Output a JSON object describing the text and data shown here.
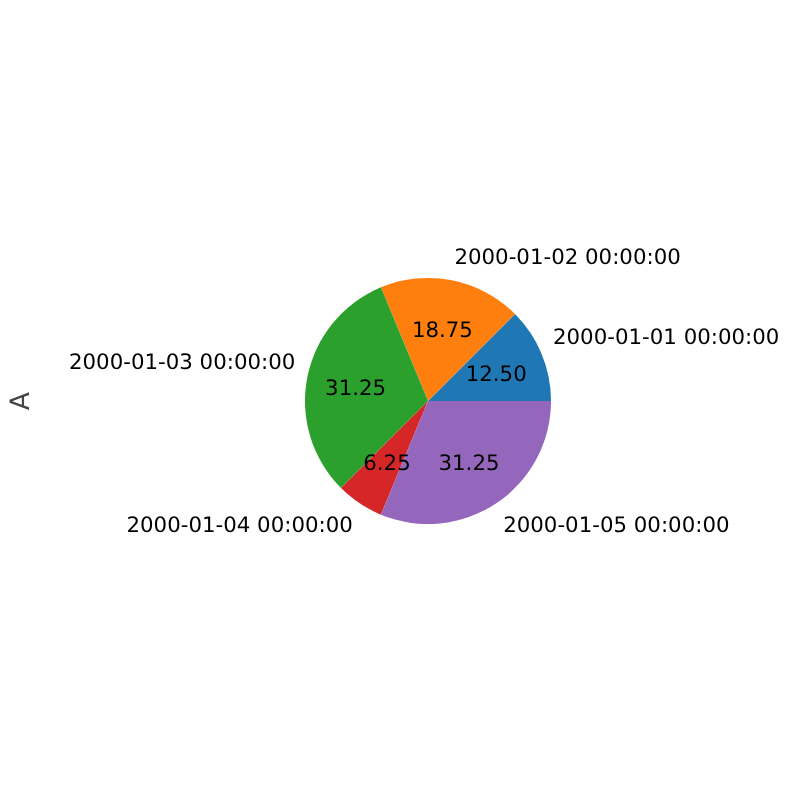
{
  "chart_data": {
    "type": "pie",
    "ylabel": "A",
    "categories": [
      "2000-01-01 00:00:00",
      "2000-01-02 00:00:00",
      "2000-01-03 00:00:00",
      "2000-01-04 00:00:00",
      "2000-01-05 00:00:00"
    ],
    "values": [
      12.5,
      18.75,
      31.25,
      6.25,
      31.25
    ],
    "colors": [
      "#1f77b4",
      "#ff7f0e",
      "#2ca02c",
      "#d62728",
      "#9467bd"
    ],
    "value_labels": [
      "12.50",
      "18.75",
      "31.25",
      "6.25",
      "31.25"
    ]
  }
}
